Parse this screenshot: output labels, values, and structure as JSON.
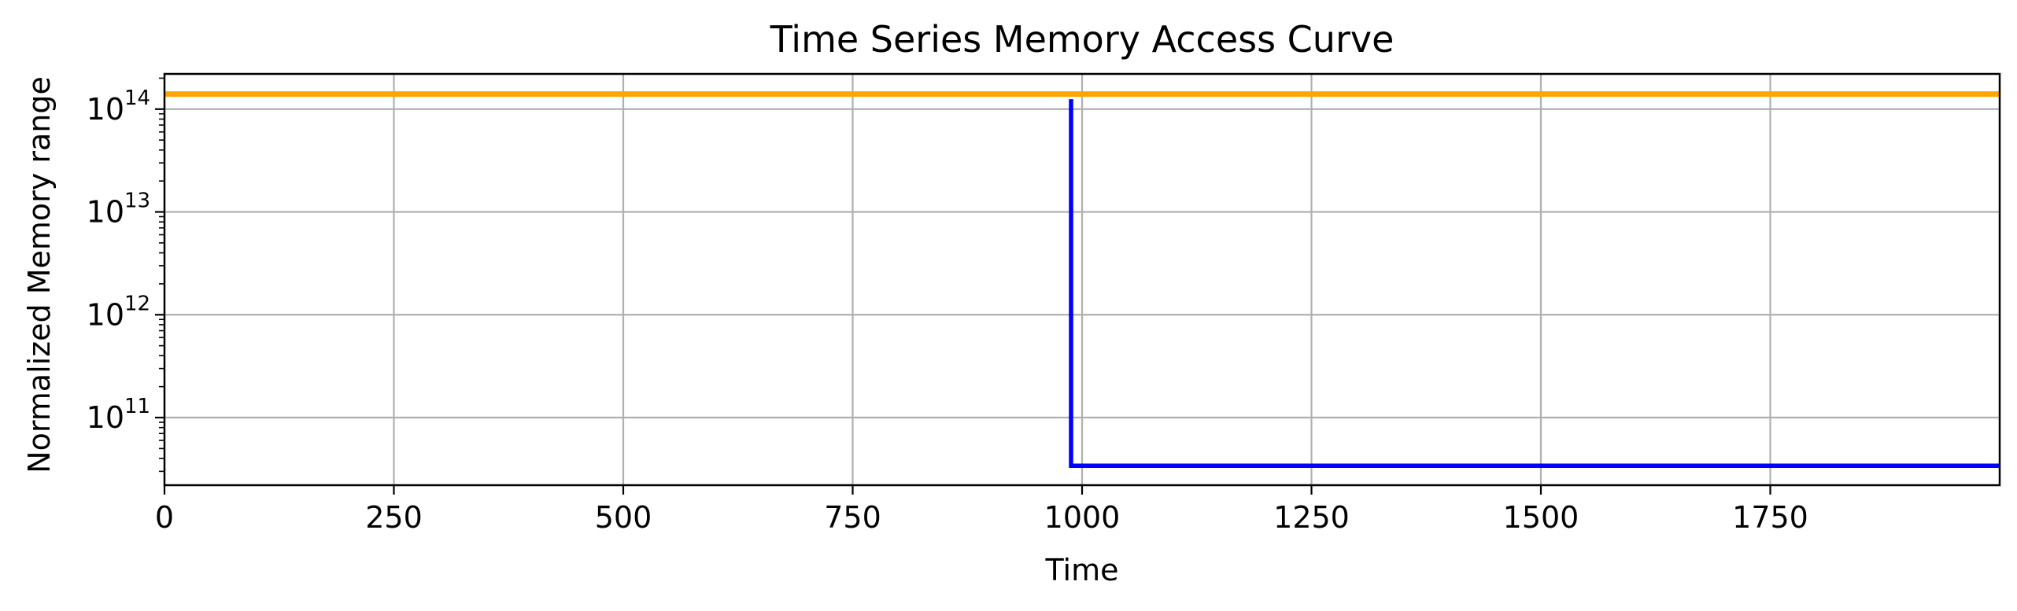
{
  "chart_data": {
    "type": "line",
    "title": "Time Series Memory Access Curve",
    "xlabel": "Time",
    "ylabel": "Normalized Memory range",
    "xlim": [
      0,
      2000
    ],
    "ylim": [
      22000000000.0,
      220000000000000.0
    ],
    "y_scale": "log",
    "grid": true,
    "x_ticks": [
      0,
      250,
      500,
      750,
      1000,
      1250,
      1500,
      1750
    ],
    "x_tick_labels": [
      "0",
      "250",
      "500",
      "750",
      "1000",
      "1250",
      "1500",
      "1750"
    ],
    "y_ticks": [
      100000000000.0,
      1000000000000.0,
      10000000000000.0,
      100000000000000.0
    ],
    "y_tick_labels": [
      {
        "base": "10",
        "exp": "11"
      },
      {
        "base": "10",
        "exp": "12"
      },
      {
        "base": "10",
        "exp": "13"
      },
      {
        "base": "10",
        "exp": "14"
      }
    ],
    "series": [
      {
        "color": "#ffa500",
        "points": [
          [
            0,
            140000000000000.0
          ],
          [
            2000,
            140000000000000.0
          ]
        ]
      },
      {
        "color": "#0000ff",
        "points": [
          [
            988,
            125000000000000.0
          ],
          [
            988,
            34000000000.0
          ],
          [
            2000,
            34000000000.0
          ]
        ]
      }
    ]
  }
}
